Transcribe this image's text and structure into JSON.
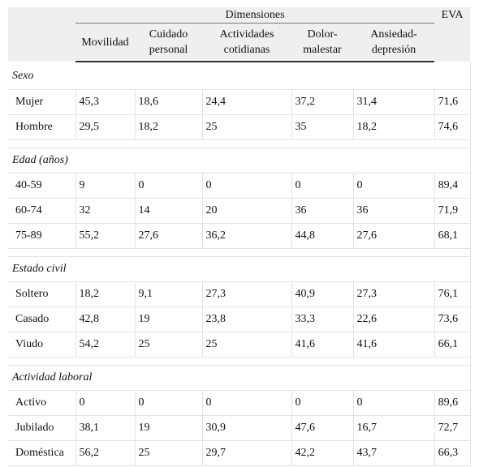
{
  "header": {
    "group_label": "Dimensiones",
    "eva_label": "EVA",
    "columns": [
      "Movilidad",
      "Cuidado personal",
      "Actividades cotidianas",
      "Dolor-malestar",
      "Ansiedad-depresión"
    ]
  },
  "sections": [
    {
      "title": "Sexo",
      "rows": [
        {
          "label": "Mujer",
          "values": [
            "45,3",
            "18,6",
            "24,4",
            "37,2",
            "31,4",
            "71,6"
          ]
        },
        {
          "label": "Hombre",
          "values": [
            "29,5",
            "18,2",
            "25",
            "35",
            "18,2",
            "74,6"
          ]
        }
      ]
    },
    {
      "title": "Edad (años)",
      "rows": [
        {
          "label": "40-59",
          "values": [
            "9",
            "0",
            "0",
            "0",
            "0",
            "89,4"
          ]
        },
        {
          "label": "60-74",
          "values": [
            "32",
            "14",
            "20",
            "36",
            "36",
            "71,9"
          ]
        },
        {
          "label": "75-89",
          "values": [
            "55,2",
            "27,6",
            "36,2",
            "44,8",
            "27,6",
            "68,1"
          ]
        }
      ]
    },
    {
      "title": "Estado civil",
      "rows": [
        {
          "label": "Soltero",
          "values": [
            "18,2",
            "9,1",
            "27,3",
            "40,9",
            "27,3",
            "76,1"
          ]
        },
        {
          "label": "Casado",
          "values": [
            "42,8",
            "19",
            "23,8",
            "33,3",
            "22,6",
            "73,6"
          ]
        },
        {
          "label": "Viudo",
          "values": [
            "54,2",
            "25",
            "25",
            "41,6",
            "41,6",
            "66,1"
          ]
        }
      ]
    },
    {
      "title": "Actividad laboral",
      "rows": [
        {
          "label": "Activo",
          "values": [
            "0",
            "0",
            "0",
            "0",
            "0",
            "89,6"
          ]
        },
        {
          "label": "Jubilado",
          "values": [
            "38,1",
            "19",
            "30,9",
            "47,6",
            "16,7",
            "72,7"
          ]
        },
        {
          "label": "Doméstica",
          "values": [
            "56,2",
            "25",
            "29,7",
            "42,2",
            "43,7",
            "66,3"
          ]
        }
      ]
    }
  ]
}
